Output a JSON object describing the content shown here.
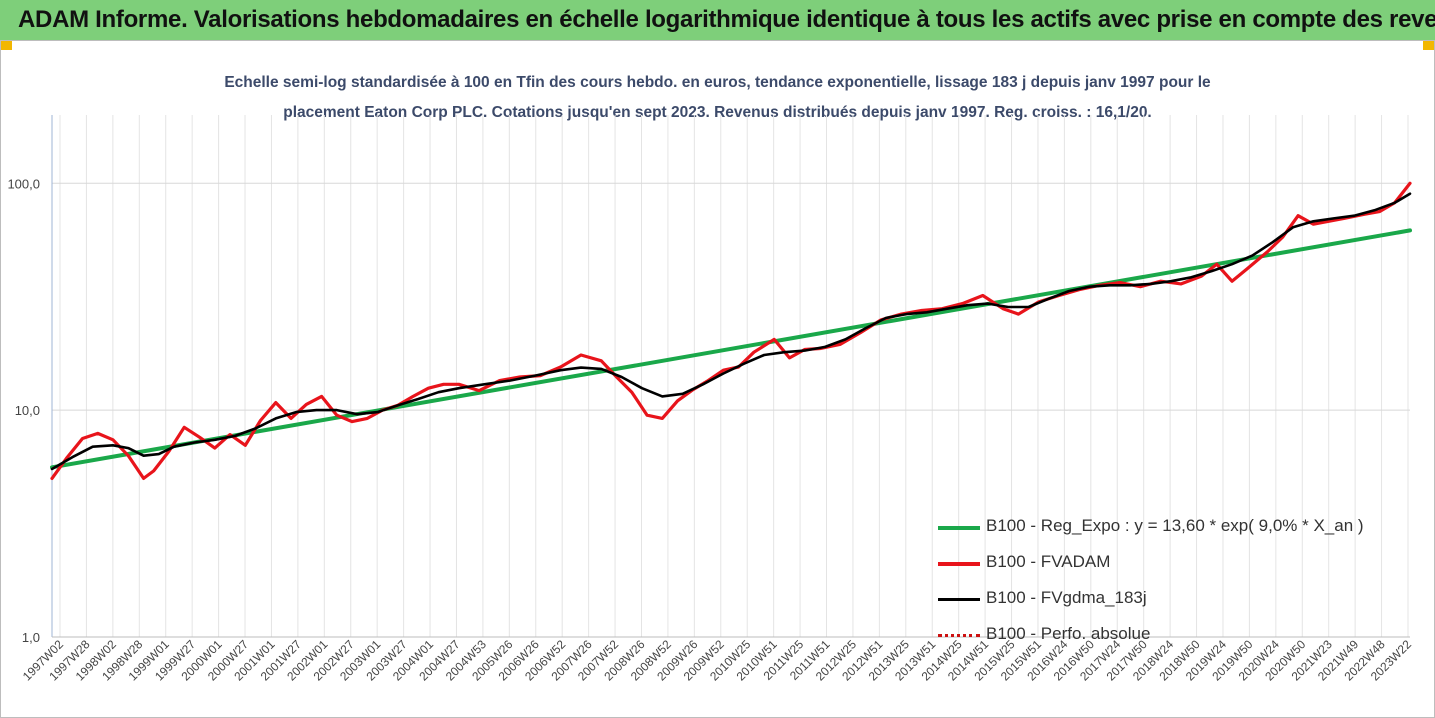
{
  "banner": {
    "title": "ADAM Informe. Valorisations hebdomadaires en échelle logarithmique identique à tous les actifs avec prise en compte des revenus co"
  },
  "colors": {
    "banner_bg": "#7ecf7a",
    "corner_accent": "#f2b700",
    "subtitle_text": "#3c4a6a",
    "reg_expo": "#1aa84a",
    "fvadam": "#e8141b",
    "fvgdma": "#000000",
    "perfo": "#cc1111"
  },
  "chart_data": {
    "type": "line",
    "title_line1": "Echelle semi-log standardisée à 100 en Tfin des cours hebdo. en euros, tendance exponentielle, lissage 183 j depuis janv 1997 pour le",
    "title_line2": "placement Eaton Corp PLC. Cotations jusqu'en sept 2023. Revenus distribués depuis janv 1997. Reg. croiss. : 16,1/20.",
    "y_scale": "log",
    "y_range": [
      1,
      200
    ],
    "y_ticks": [
      {
        "value": 1,
        "label": "1,0"
      },
      {
        "value": 10,
        "label": "10,0"
      },
      {
        "value": 100,
        "label": "100,0"
      }
    ],
    "x_tick_labels": [
      "1997W02",
      "1997W28",
      "1998W02",
      "1998W28",
      "1999W01",
      "1999W27",
      "2000W01",
      "2000W27",
      "2001W01",
      "2001W27",
      "2002W01",
      "2002W27",
      "2003W01",
      "2003W27",
      "2004W01",
      "2004W27",
      "2004W53",
      "2005W26",
      "2006W26",
      "2006W52",
      "2007W26",
      "2007W52",
      "2008W26",
      "2008W52",
      "2009W26",
      "2009W52",
      "2010W25",
      "2010W51",
      "2011W25",
      "2011W51",
      "2012W25",
      "2012W51",
      "2013W25",
      "2013W51",
      "2014W25",
      "2014W51",
      "2015W25",
      "2015W51",
      "2016W24",
      "2016W50",
      "2017W24",
      "2017W50",
      "2018W24",
      "2018W50",
      "2019W24",
      "2019W50",
      "2020W24",
      "2020W50",
      "2021W23",
      "2021W49",
      "2022W48",
      "2023W22"
    ],
    "x_range": [
      1997.0,
      2023.7
    ],
    "grid": "vertical and horizontal",
    "legend_position": "bottom-right",
    "series": [
      {
        "name": "B100 - Reg_Expo : y = 13,60 * exp( 9,0% *  X_an )",
        "color": "#1aa84a",
        "x": [
          1997.0,
          2023.7
        ],
        "y": [
          5.6,
          62
        ]
      },
      {
        "name": "B100 - FVADAM",
        "color": "#e8141b",
        "x": [
          1997.0,
          1997.3,
          1997.6,
          1997.9,
          1998.2,
          1998.5,
          1998.8,
          1999.0,
          1999.3,
          1999.6,
          1999.9,
          2000.2,
          2000.5,
          2000.8,
          2001.1,
          2001.4,
          2001.7,
          2002.0,
          2002.3,
          2002.6,
          2002.9,
          2003.2,
          2003.5,
          2003.8,
          2004.1,
          2004.4,
          2004.7,
          2005.0,
          2005.4,
          2005.8,
          2006.2,
          2006.6,
          2007.0,
          2007.4,
          2007.8,
          2008.1,
          2008.4,
          2008.7,
          2009.0,
          2009.3,
          2009.6,
          2009.9,
          2010.2,
          2010.5,
          2010.8,
          2011.2,
          2011.5,
          2011.8,
          2012.1,
          2012.5,
          2012.9,
          2013.3,
          2013.7,
          2014.1,
          2014.5,
          2014.9,
          2015.3,
          2015.7,
          2016.0,
          2016.4,
          2016.8,
          2017.2,
          2017.6,
          2018.0,
          2018.4,
          2018.8,
          2019.2,
          2019.6,
          2019.9,
          2020.2,
          2020.5,
          2020.9,
          2021.2,
          2021.5,
          2021.8,
          2022.1,
          2022.4,
          2022.8,
          2023.1,
          2023.4,
          2023.7
        ],
        "y": [
          5.0,
          6.2,
          7.5,
          7.9,
          7.4,
          6.3,
          5.0,
          5.4,
          6.6,
          8.4,
          7.6,
          6.8,
          7.8,
          7.0,
          9.0,
          10.8,
          9.2,
          10.6,
          11.5,
          9.5,
          8.9,
          9.2,
          10.0,
          10.5,
          11.5,
          12.5,
          13.0,
          13.0,
          12.2,
          13.5,
          14.0,
          14.2,
          15.5,
          17.5,
          16.5,
          14.0,
          12.0,
          9.5,
          9.2,
          11.0,
          12.3,
          13.5,
          15.0,
          15.5,
          18.0,
          20.5,
          17.0,
          18.5,
          18.7,
          19.5,
          22.0,
          25.0,
          26.5,
          27.5,
          28.0,
          29.5,
          32.0,
          28.0,
          26.5,
          30.0,
          32.0,
          34.0,
          35.5,
          36.5,
          35.0,
          37.0,
          36.0,
          39.0,
          44.0,
          37.0,
          42.0,
          50.0,
          58.0,
          72.0,
          66.0,
          68.0,
          70.0,
          73.0,
          75.0,
          82.0,
          100.0
        ]
      },
      {
        "name": "B100 - FVgdma_183j",
        "color": "#000000",
        "x": [
          1997.0,
          1997.4,
          1997.8,
          1998.2,
          1998.5,
          1998.8,
          1999.1,
          1999.4,
          1999.8,
          2000.2,
          2000.6,
          2001.0,
          2001.4,
          2001.8,
          2002.2,
          2002.6,
          2003.0,
          2003.4,
          2003.8,
          2004.2,
          2004.6,
          2005.0,
          2005.5,
          2006.0,
          2006.5,
          2007.0,
          2007.4,
          2007.8,
          2008.2,
          2008.6,
          2009.0,
          2009.4,
          2009.8,
          2010.2,
          2010.6,
          2011.0,
          2011.4,
          2011.8,
          2012.2,
          2012.6,
          2013.0,
          2013.4,
          2013.8,
          2014.2,
          2014.6,
          2015.0,
          2015.4,
          2015.8,
          2016.2,
          2016.6,
          2017.0,
          2017.4,
          2017.8,
          2018.2,
          2018.6,
          2019.0,
          2019.4,
          2019.8,
          2020.2,
          2020.6,
          2021.0,
          2021.4,
          2021.8,
          2022.2,
          2022.6,
          2023.0,
          2023.4,
          2023.7
        ],
        "y": [
          5.5,
          6.2,
          6.9,
          7.0,
          6.8,
          6.3,
          6.4,
          6.9,
          7.2,
          7.4,
          7.7,
          8.3,
          9.2,
          9.8,
          10.0,
          10.0,
          9.6,
          9.8,
          10.5,
          11.2,
          12.0,
          12.5,
          13.0,
          13.5,
          14.2,
          15.0,
          15.4,
          15.2,
          14.0,
          12.5,
          11.5,
          11.8,
          13.0,
          14.5,
          16.0,
          17.5,
          18.0,
          18.3,
          19.0,
          20.5,
          23.0,
          25.5,
          26.5,
          27.0,
          28.0,
          29.0,
          29.5,
          28.5,
          28.5,
          31.0,
          33.5,
          35.0,
          35.5,
          35.5,
          36.0,
          37.0,
          38.5,
          41.0,
          44.0,
          48.0,
          55.0,
          64.0,
          68.0,
          70.0,
          72.0,
          76.0,
          82.0,
          90.0
        ]
      },
      {
        "name": "B100 - Perfo. absolue",
        "color": "#cc1111",
        "x": [],
        "y": []
      }
    ]
  }
}
